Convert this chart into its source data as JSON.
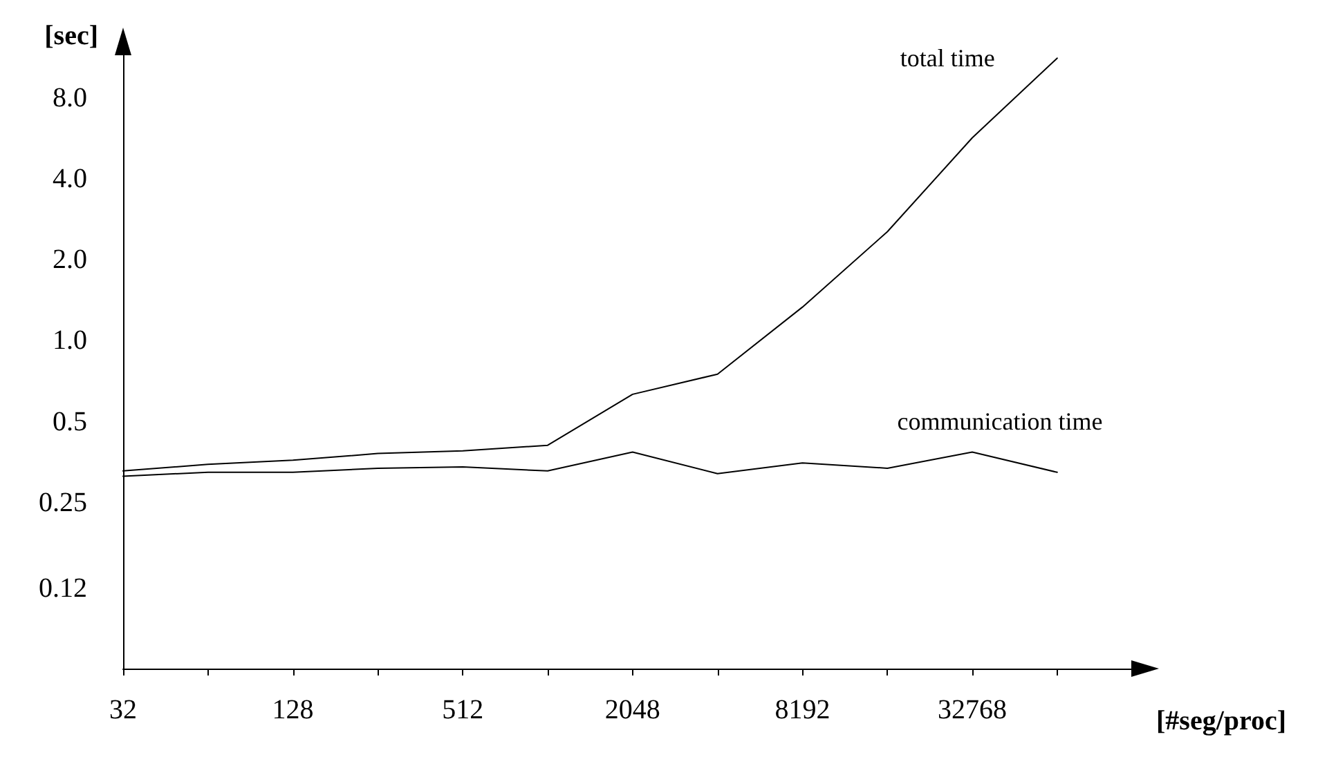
{
  "chart_data": {
    "type": "line",
    "xlabel": "[#seg/proc]",
    "ylabel": "[sec]",
    "x": [
      32,
      64,
      128,
      256,
      512,
      1024,
      2048,
      4096,
      8192,
      16384,
      32768,
      65536
    ],
    "series": [
      {
        "name": "total time",
        "color": "#000000",
        "values": [
          0.342,
          0.362,
          0.375,
          0.397,
          0.406,
          0.426,
          0.659,
          0.783,
          1.39,
          2.65,
          5.92,
          11.7
        ]
      },
      {
        "name": "communication time",
        "color": "#000000",
        "values": [
          0.327,
          0.338,
          0.338,
          0.35,
          0.354,
          0.342,
          0.402,
          0.334,
          0.366,
          0.35,
          0.402,
          0.338
        ]
      }
    ],
    "log": "xy",
    "xlim": [
      32,
      120000
    ],
    "ylim": [
      0.063,
      12
    ],
    "xticks": [
      32,
      {
        "value": 64,
        "label": null
      },
      128,
      {
        "value": 256,
        "label": null
      },
      512,
      {
        "value": 1024,
        "label": null
      },
      2048,
      {
        "value": 4096,
        "label": null
      },
      8192,
      {
        "value": 16384,
        "label": null
      },
      32768,
      {
        "value": 65536,
        "label": null
      }
    ],
    "yticks": [
      0.12,
      0.25,
      0.5,
      {
        "value": 1,
        "label": "1.0"
      },
      {
        "value": 2,
        "label": "2.0"
      },
      {
        "value": 4,
        "label": "4.0"
      },
      {
        "value": 8,
        "label": "8.0"
      }
    ],
    "grid": false,
    "legend": false,
    "marker": "none",
    "line_style": "solid"
  }
}
